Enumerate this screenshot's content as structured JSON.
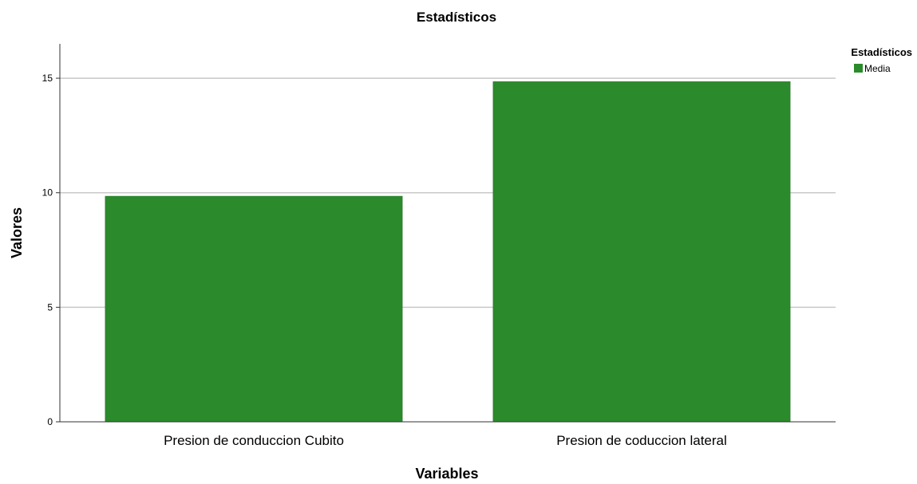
{
  "chart_data": {
    "type": "bar",
    "title": "Estadísticos",
    "xlabel": "Variables",
    "ylabel": "Valores",
    "categories": [
      "Presion de conduccion Cubito",
      "Presion de coduccion lateral"
    ],
    "series": [
      {
        "name": "Media",
        "values": [
          9.85,
          14.85
        ],
        "color": "#2b8a2b"
      }
    ],
    "ylim": [
      0,
      16.5
    ],
    "yticks": [
      0,
      5,
      10,
      15
    ],
    "grid": true,
    "legend": {
      "title": "Estadísticos",
      "placement": "top-right"
    }
  }
}
